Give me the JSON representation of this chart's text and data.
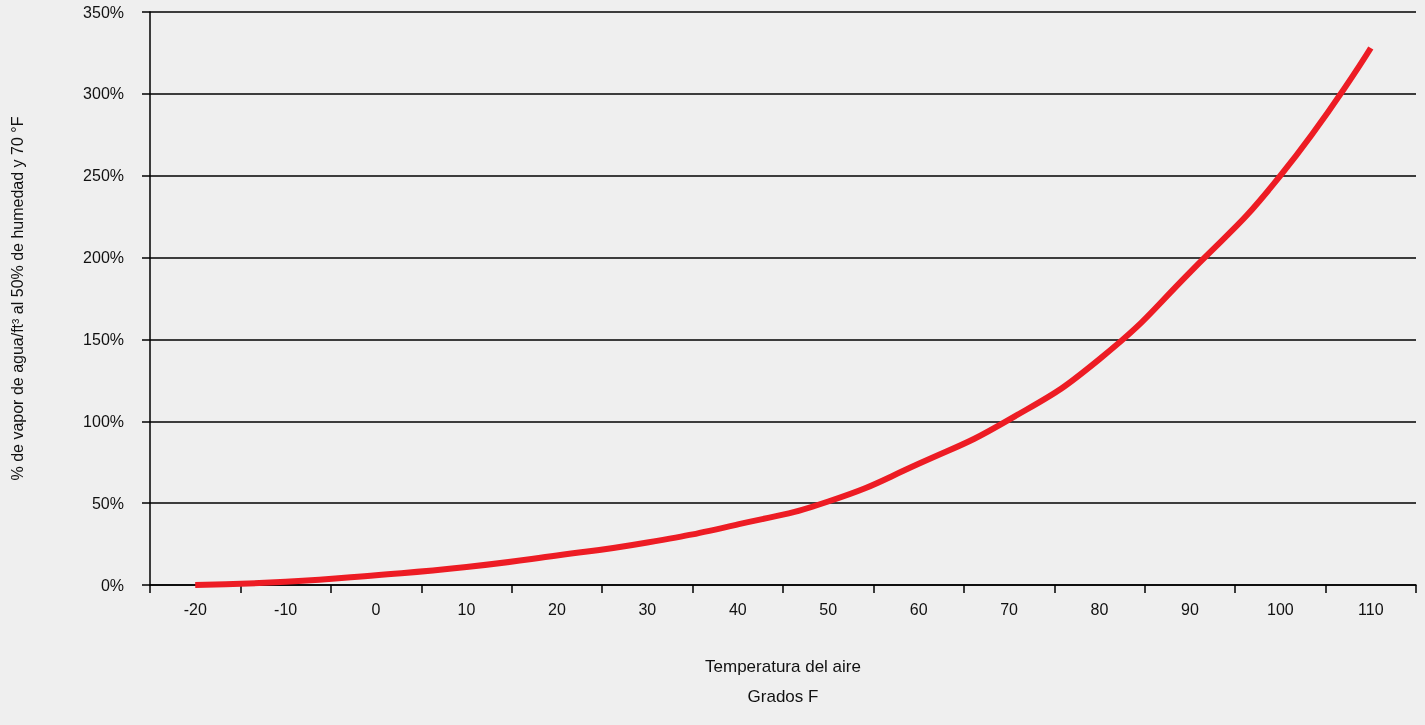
{
  "chart_data": {
    "type": "line",
    "xlabel": "Temperatura del aire\nGrados F",
    "ylabel": "% de vapor de agua/ft³ al 50% de humedad y 70 °F",
    "categories": [
      "-20",
      "-10",
      "0",
      "10",
      "20",
      "30",
      "40",
      "50",
      "60",
      "70",
      "80",
      "90",
      "100",
      "110"
    ],
    "series": [
      {
        "color": "#ed1c24",
        "values": [
          0,
          2,
          6,
          11,
          18,
          26,
          37,
          51,
          74,
          101,
          138,
          191,
          250,
          328
        ]
      }
    ],
    "ylim": [
      0,
      350
    ],
    "yticks": [
      {
        "value": 0,
        "label": "0%"
      },
      {
        "value": 50,
        "label": "50%"
      },
      {
        "value": 100,
        "label": "100%"
      },
      {
        "value": 150,
        "label": "150%"
      },
      {
        "value": 200,
        "label": "200%"
      },
      {
        "value": 250,
        "label": "250%"
      },
      {
        "value": 300,
        "label": "300%"
      },
      {
        "value": 350,
        "label": "350%"
      }
    ],
    "grid": "y",
    "marker": "none",
    "line_style": "solid"
  }
}
